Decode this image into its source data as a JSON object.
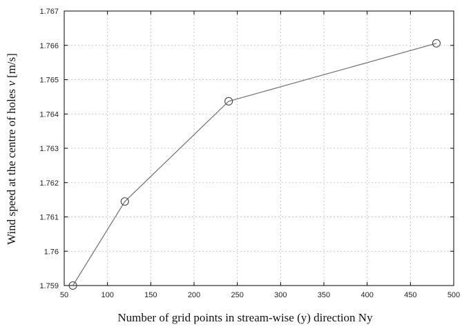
{
  "chart_data": {
    "type": "line",
    "title": "",
    "xlabel": "Number of grid points in stream-wise (y) direction Ny",
    "ylabel_prefix": "Wind speed at the centre of holes ",
    "ylabel_var": "v",
    "ylabel_unit": " [m/s]",
    "x": [
      60,
      120,
      240,
      480
    ],
    "series": [
      {
        "values": [
          1.759,
          1.76145,
          1.76437,
          1.76606
        ]
      }
    ],
    "xlim": [
      50,
      500
    ],
    "ylim": [
      1.759,
      1.767
    ],
    "xticks": [
      50,
      100,
      150,
      200,
      250,
      300,
      350,
      400,
      450,
      500
    ],
    "xtick_labels": [
      "50",
      "100",
      "150",
      "200",
      "250",
      "300",
      "350",
      "400",
      "450",
      "500"
    ],
    "yticks": [
      1.759,
      1.76,
      1.761,
      1.762,
      1.763,
      1.764,
      1.765,
      1.766,
      1.767
    ],
    "ytick_labels": [
      "1.759",
      "1.76",
      "1.761",
      "1.762",
      "1.763",
      "1.764",
      "1.765",
      "1.766",
      "1.767"
    ],
    "grid": true,
    "marker": "open-circle",
    "colors": {
      "line": "#777777",
      "grid": "#c8c8c8",
      "frame": "#000000"
    }
  }
}
